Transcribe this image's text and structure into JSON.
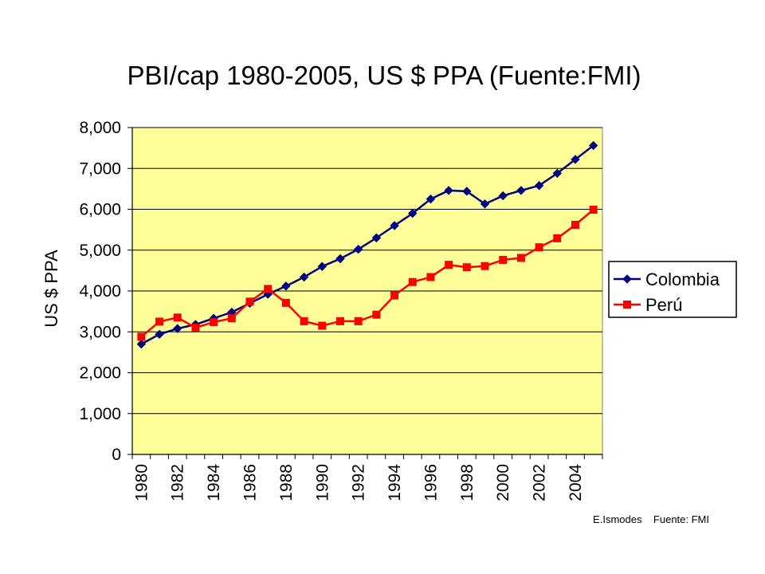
{
  "chart_data": {
    "type": "line",
    "title": "PBI/cap 1980-2005, US $ PPA (Fuente:FMI)",
    "xlabel": "",
    "ylabel": "US $ PPA",
    "ylim": [
      0,
      8000
    ],
    "yticks": [
      "0",
      "1,000",
      "2,000",
      "3,000",
      "4,000",
      "5,000",
      "6,000",
      "7,000",
      "8,000"
    ],
    "xtick_labels": [
      "1980",
      "1982",
      "1984",
      "1986",
      "1988",
      "1990",
      "1992",
      "1994",
      "1996",
      "1998",
      "2000",
      "2002",
      "2004"
    ],
    "x": [
      1980,
      1981,
      1982,
      1983,
      1984,
      1985,
      1986,
      1987,
      1988,
      1989,
      1990,
      1991,
      1992,
      1993,
      1994,
      1995,
      1996,
      1997,
      1998,
      1999,
      2000,
      2001,
      2002,
      2003,
      2004,
      2005
    ],
    "grid": true,
    "legend_position": "right",
    "plot_background": "#ffff99",
    "series": [
      {
        "name": "Colombia",
        "color": "#000080",
        "marker": "diamond",
        "values": [
          2700,
          2940,
          3080,
          3180,
          3330,
          3480,
          3700,
          3920,
          4120,
          4340,
          4600,
          4790,
          5020,
          5300,
          5600,
          5900,
          6250,
          6460,
          6440,
          6130,
          6330,
          6460,
          6580,
          6880,
          7220,
          7560
        ]
      },
      {
        "name": "Perú",
        "color": "#ff0000",
        "marker": "square",
        "values": [
          2880,
          3250,
          3350,
          3100,
          3240,
          3330,
          3740,
          4050,
          3710,
          3260,
          3150,
          3260,
          3260,
          3420,
          3890,
          4220,
          4340,
          4640,
          4580,
          4610,
          4760,
          4810,
          5070,
          5290,
          5620,
          5990
        ]
      }
    ]
  },
  "footer": {
    "author": "E.Ismodes",
    "source": "Fuente: FMI"
  }
}
